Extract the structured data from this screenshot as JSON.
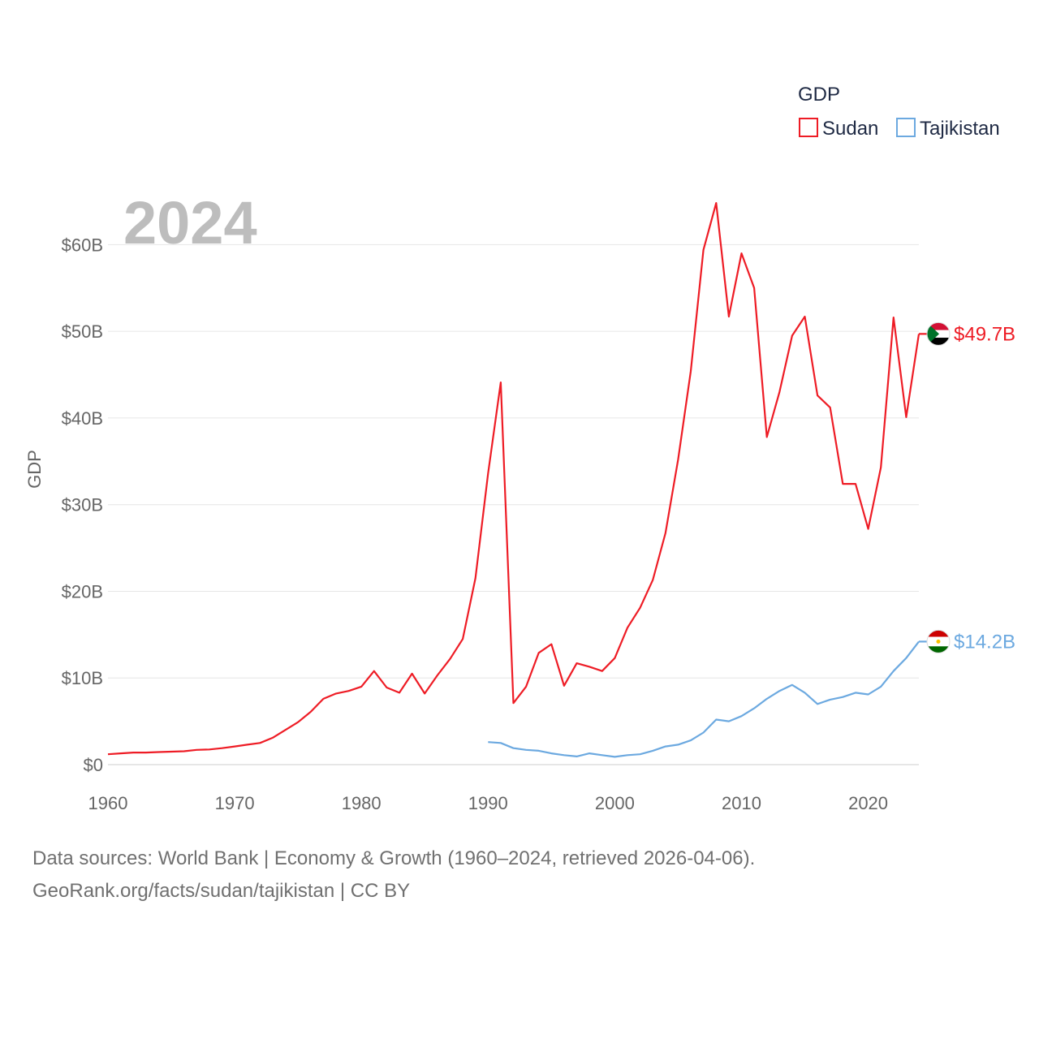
{
  "chart_data": {
    "type": "line",
    "year_label": "2024",
    "ylabel": "GDP",
    "xlabel": "",
    "xlim": [
      1960,
      2024
    ],
    "ylim": [
      0,
      65
    ],
    "y_ticks": [
      0,
      10,
      20,
      30,
      40,
      50,
      60
    ],
    "y_tick_labels": [
      "$0",
      "$10B",
      "$20B",
      "$30B",
      "$40B",
      "$50B",
      "$60B"
    ],
    "x_ticks": [
      1960,
      1970,
      1980,
      1990,
      2000,
      2010,
      2020
    ],
    "x_tick_labels": [
      "1960",
      "1970",
      "1980",
      "1990",
      "2000",
      "2010",
      "2020"
    ],
    "grid": true,
    "legend": {
      "title": "GDP",
      "position": "top-right"
    },
    "series": [
      {
        "name": "Sudan",
        "color": "#ee1c25",
        "end_label": "$49.7B",
        "flag": "sudan-flag",
        "points": [
          [
            1960,
            1.2
          ],
          [
            1961,
            1.3
          ],
          [
            1962,
            1.4
          ],
          [
            1963,
            1.4
          ],
          [
            1964,
            1.45
          ],
          [
            1965,
            1.5
          ],
          [
            1966,
            1.55
          ],
          [
            1967,
            1.7
          ],
          [
            1968,
            1.75
          ],
          [
            1969,
            1.9
          ],
          [
            1970,
            2.1
          ],
          [
            1971,
            2.3
          ],
          [
            1972,
            2.5
          ],
          [
            1973,
            3.1
          ],
          [
            1974,
            4.0
          ],
          [
            1975,
            4.9
          ],
          [
            1976,
            6.1
          ],
          [
            1977,
            7.6
          ],
          [
            1978,
            8.2
          ],
          [
            1979,
            8.5
          ],
          [
            1980,
            9.0
          ],
          [
            1981,
            10.8
          ],
          [
            1982,
            8.9
          ],
          [
            1983,
            8.3
          ],
          [
            1984,
            10.5
          ],
          [
            1985,
            8.2
          ],
          [
            1986,
            10.3
          ],
          [
            1987,
            12.2
          ],
          [
            1988,
            14.5
          ],
          [
            1989,
            21.5
          ],
          [
            1990,
            33.6
          ],
          [
            1991,
            44.1
          ],
          [
            1992,
            7.1
          ],
          [
            1993,
            9.0
          ],
          [
            1994,
            12.9
          ],
          [
            1995,
            13.9
          ],
          [
            1996,
            9.1
          ],
          [
            1997,
            11.7
          ],
          [
            1998,
            11.3
          ],
          [
            1999,
            10.8
          ],
          [
            2000,
            12.3
          ],
          [
            2001,
            15.8
          ],
          [
            2002,
            18.1
          ],
          [
            2003,
            21.3
          ],
          [
            2004,
            26.7
          ],
          [
            2005,
            35.2
          ],
          [
            2006,
            45.4
          ],
          [
            2007,
            59.4
          ],
          [
            2008,
            64.8
          ],
          [
            2009,
            51.7
          ],
          [
            2010,
            59.0
          ],
          [
            2011,
            55.0
          ],
          [
            2012,
            37.8
          ],
          [
            2013,
            43.0
          ],
          [
            2014,
            49.5
          ],
          [
            2015,
            51.7
          ],
          [
            2016,
            42.6
          ],
          [
            2017,
            41.2
          ],
          [
            2018,
            32.4
          ],
          [
            2019,
            32.4
          ],
          [
            2020,
            27.2
          ],
          [
            2021,
            34.3
          ],
          [
            2022,
            51.6
          ],
          [
            2023,
            40.1
          ],
          [
            2024,
            49.7
          ]
        ]
      },
      {
        "name": "Tajikistan",
        "color": "#6ca9e0",
        "end_label": "$14.2B",
        "flag": "tajikistan-flag",
        "points": [
          [
            1990,
            2.6
          ],
          [
            1991,
            2.5
          ],
          [
            1992,
            1.9
          ],
          [
            1993,
            1.7
          ],
          [
            1994,
            1.6
          ],
          [
            1995,
            1.3
          ],
          [
            1996,
            1.1
          ],
          [
            1997,
            0.95
          ],
          [
            1998,
            1.3
          ],
          [
            1999,
            1.1
          ],
          [
            2000,
            0.9
          ],
          [
            2001,
            1.1
          ],
          [
            2002,
            1.2
          ],
          [
            2003,
            1.6
          ],
          [
            2004,
            2.1
          ],
          [
            2005,
            2.3
          ],
          [
            2006,
            2.8
          ],
          [
            2007,
            3.7
          ],
          [
            2008,
            5.2
          ],
          [
            2009,
            5.0
          ],
          [
            2010,
            5.6
          ],
          [
            2011,
            6.5
          ],
          [
            2012,
            7.6
          ],
          [
            2013,
            8.5
          ],
          [
            2014,
            9.2
          ],
          [
            2015,
            8.3
          ],
          [
            2016,
            7.0
          ],
          [
            2017,
            7.5
          ],
          [
            2018,
            7.8
          ],
          [
            2019,
            8.3
          ],
          [
            2020,
            8.1
          ],
          [
            2021,
            9.0
          ],
          [
            2022,
            10.8
          ],
          [
            2023,
            12.3
          ],
          [
            2024,
            14.2
          ]
        ]
      }
    ]
  },
  "footer": {
    "line1": "Data sources: World Bank | Economy & Growth (1960–2024, retrieved 2026-04-06).",
    "line2": "GeoRank.org/facts/sudan/tajikistan | CC BY"
  }
}
